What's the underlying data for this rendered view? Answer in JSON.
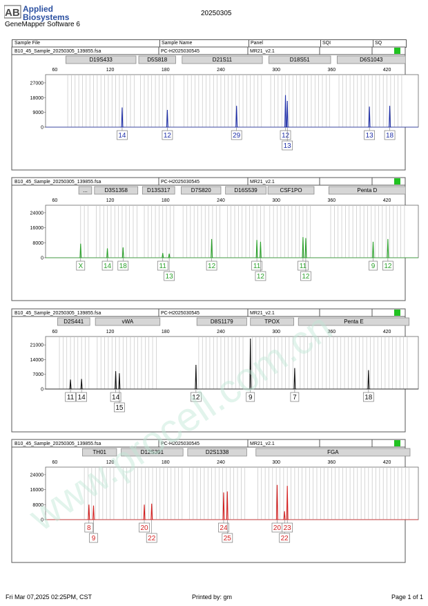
{
  "header": {
    "logo_ab": "AB",
    "logo_line1": "Applied",
    "logo_line2": "Biosystems",
    "date": "20250305",
    "software": "GeneMapper Software 6"
  },
  "columns": {
    "sample_file": "Sample File",
    "sample_name": "Sample Name",
    "panel": "Panel",
    "sqi": "SQI",
    "sq": "SQ"
  },
  "watermark": "www.procell.com.cn",
  "colors": {
    "blue": "#1f2fa8",
    "green": "#2aa02a",
    "black": "#111111",
    "red": "#d42020",
    "quality_flag": "#21c221"
  },
  "footer": {
    "printed_at": "Fri Mar 07,2025 02:25PM, CST",
    "printed_by": "Printed by: gm",
    "page": "Page 1 of 1"
  },
  "chart_data": [
    {
      "type": "line",
      "dye": "blue",
      "sample_file": "B10_45_Sample_20250305_139855.fsa",
      "sample_name": "PC-H2025030545",
      "panel": "MR21_v2.1",
      "x_ticks": [
        60,
        120,
        180,
        240,
        300,
        360,
        420
      ],
      "xlim": [
        50,
        454
      ],
      "y_ticks": [
        0,
        9000,
        18000,
        27000
      ],
      "ylim": [
        0,
        32000
      ],
      "markers": [
        {
          "name": "D19S433",
          "range": [
            72,
            148
          ]
        },
        {
          "name": "D5S818",
          "range": [
            151,
            191
          ]
        },
        {
          "name": "D21S11",
          "range": [
            198,
            285
          ]
        },
        {
          "name": "D18S51",
          "range": [
            292,
            359
          ]
        },
        {
          "name": "D6S1043",
          "range": [
            366,
            440
          ]
        }
      ],
      "peaks": [
        {
          "x": 133,
          "y": 12000
        },
        {
          "x": 182,
          "y": 10500
        },
        {
          "x": 257,
          "y": 13000
        },
        {
          "x": 310,
          "y": 19500
        },
        {
          "x": 312,
          "y": 16000
        },
        {
          "x": 401,
          "y": 12500
        },
        {
          "x": 423,
          "y": 13000
        }
      ],
      "calls": [
        {
          "x": 133,
          "row": 0,
          "label": "14"
        },
        {
          "x": 182,
          "row": 0,
          "label": "12"
        },
        {
          "x": 257,
          "row": 0,
          "label": "29"
        },
        {
          "x": 310,
          "row": 0,
          "label": "12"
        },
        {
          "x": 312,
          "row": 1,
          "label": "13"
        },
        {
          "x": 401,
          "row": 0,
          "label": "13"
        },
        {
          "x": 423,
          "row": 0,
          "label": "18"
        }
      ]
    },
    {
      "type": "line",
      "dye": "green",
      "sample_file": "B10_45_Sample_20250305_139855.fsa",
      "sample_name": "PC-H2025030545",
      "panel": "MR21_v2.1",
      "x_ticks": [
        60,
        120,
        180,
        240,
        300,
        360,
        420
      ],
      "xlim": [
        50,
        454
      ],
      "y_ticks": [
        0,
        8000,
        16000,
        24000
      ],
      "ylim": [
        0,
        28000
      ],
      "markers": [
        {
          "name": "...",
          "range": [
            86,
            100
          ]
        },
        {
          "name": "D3S1358",
          "range": [
            103,
            150
          ]
        },
        {
          "name": "D13S317",
          "range": [
            155,
            190
          ]
        },
        {
          "name": "D7S820",
          "range": [
            197,
            240
          ]
        },
        {
          "name": "D16S539",
          "range": [
            245,
            289
          ]
        },
        {
          "name": "CSF1PO",
          "range": [
            291,
            341
          ]
        },
        {
          "name": "Penta D",
          "range": [
            357,
            440
          ]
        }
      ],
      "peaks": [
        {
          "x": 88,
          "y": 7500
        },
        {
          "x": 117,
          "y": 5000
        },
        {
          "x": 134,
          "y": 5500
        },
        {
          "x": 177,
          "y": 2500
        },
        {
          "x": 184,
          "y": 2200
        },
        {
          "x": 230,
          "y": 10000
        },
        {
          "x": 279,
          "y": 9500
        },
        {
          "x": 283,
          "y": 8500
        },
        {
          "x": 329,
          "y": 11000
        },
        {
          "x": 332,
          "y": 10500
        },
        {
          "x": 405,
          "y": 8500
        },
        {
          "x": 421,
          "y": 10000
        }
      ],
      "calls": [
        {
          "x": 88,
          "row": 0,
          "label": "X"
        },
        {
          "x": 117,
          "row": 0,
          "label": "14"
        },
        {
          "x": 134,
          "row": 0,
          "label": "18"
        },
        {
          "x": 177,
          "row": 0,
          "label": "11"
        },
        {
          "x": 184,
          "row": 1,
          "label": "13"
        },
        {
          "x": 230,
          "row": 0,
          "label": "12"
        },
        {
          "x": 279,
          "row": 0,
          "label": "11"
        },
        {
          "x": 283,
          "row": 1,
          "label": "12"
        },
        {
          "x": 329,
          "row": 0,
          "label": "11"
        },
        {
          "x": 332,
          "row": 1,
          "label": "12"
        },
        {
          "x": 405,
          "row": 0,
          "label": "9"
        },
        {
          "x": 421,
          "row": 0,
          "label": "12"
        }
      ]
    },
    {
      "type": "line",
      "dye": "black",
      "sample_file": "B10_45_Sample_20250305_139855.fsa",
      "sample_name": "PC-H2025030545",
      "panel": "MR21_v2.1",
      "x_ticks": [
        60,
        120,
        180,
        240,
        300,
        360,
        420
      ],
      "xlim": [
        50,
        454
      ],
      "y_ticks": [
        0,
        7000,
        14000,
        21000
      ],
      "ylim": [
        0,
        25000
      ],
      "markers": [
        {
          "name": "D2S441",
          "range": [
            63,
            98
          ]
        },
        {
          "name": "vWA",
          "range": [
            104,
            174
          ]
        },
        {
          "name": "D8S1179",
          "range": [
            214,
            268
          ]
        },
        {
          "name": "TPOX",
          "range": [
            272,
            319
          ]
        },
        {
          "name": "Penta E",
          "range": [
            324,
            444
          ]
        }
      ],
      "peaks": [
        {
          "x": 77,
          "y": 4500
        },
        {
          "x": 89,
          "y": 4800
        },
        {
          "x": 126,
          "y": 8500
        },
        {
          "x": 130,
          "y": 7500
        },
        {
          "x": 213,
          "y": 11500
        },
        {
          "x": 272,
          "y": 24000
        },
        {
          "x": 320,
          "y": 10000
        },
        {
          "x": 400,
          "y": 9000
        }
      ],
      "calls": [
        {
          "x": 77,
          "row": 0,
          "label": "11"
        },
        {
          "x": 89,
          "row": 0,
          "label": "14"
        },
        {
          "x": 126,
          "row": 0,
          "label": "14"
        },
        {
          "x": 130,
          "row": 1,
          "label": "15"
        },
        {
          "x": 213,
          "row": 0,
          "label": "12"
        },
        {
          "x": 272,
          "row": 0,
          "label": "9"
        },
        {
          "x": 320,
          "row": 0,
          "label": "7"
        },
        {
          "x": 400,
          "row": 0,
          "label": "18"
        }
      ]
    },
    {
      "type": "line",
      "dye": "red",
      "sample_file": "B10_45_Sample_20250305_139855.fsa",
      "sample_name": "PC-H2025030545",
      "panel": "MR21_v2.1",
      "x_ticks": [
        60,
        120,
        180,
        240,
        300,
        360,
        420
      ],
      "xlim": [
        50,
        454
      ],
      "y_ticks": [
        0,
        8000,
        16000,
        24000
      ],
      "ylim": [
        0,
        28000
      ],
      "markers": [
        {
          "name": "TH01",
          "range": [
            90,
            127
          ]
        },
        {
          "name": "D12S391",
          "range": [
            132,
            199
          ]
        },
        {
          "name": "D2S1338",
          "range": [
            204,
            268
          ]
        },
        {
          "name": "FGA",
          "range": [
            278,
            445
          ]
        }
      ],
      "peaks": [
        {
          "x": 97,
          "y": 8000
        },
        {
          "x": 102,
          "y": 7500
        },
        {
          "x": 157,
          "y": 8000
        },
        {
          "x": 165,
          "y": 8500
        },
        {
          "x": 243,
          "y": 14500
        },
        {
          "x": 247,
          "y": 15000
        },
        {
          "x": 301,
          "y": 18500
        },
        {
          "x": 309,
          "y": 4500
        },
        {
          "x": 312,
          "y": 18000
        }
      ],
      "calls": [
        {
          "x": 97,
          "row": 0,
          "label": "8"
        },
        {
          "x": 102,
          "row": 1,
          "label": "9"
        },
        {
          "x": 157,
          "row": 0,
          "label": "20"
        },
        {
          "x": 165,
          "row": 1,
          "label": "22"
        },
        {
          "x": 243,
          "row": 0,
          "label": "24"
        },
        {
          "x": 247,
          "row": 1,
          "label": "25"
        },
        {
          "x": 301,
          "row": 0,
          "label": "20"
        },
        {
          "x": 309,
          "row": 1,
          "label": "22"
        },
        {
          "x": 312,
          "row": 0,
          "label": "23"
        }
      ]
    }
  ]
}
